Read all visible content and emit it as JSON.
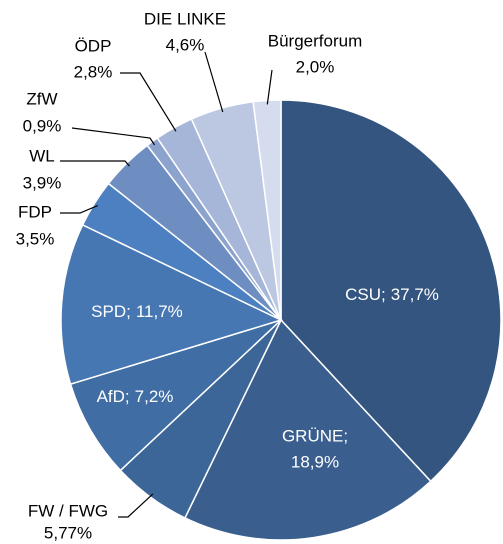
{
  "chart_data": {
    "type": "pie",
    "categories": [
      "CSU;",
      "GRÜNE;",
      "FW / FWG",
      "AfD;",
      "SPD;",
      "FDP",
      "WL",
      "ZfW",
      "ÖDP",
      "DIE LINKE",
      "Bürgerforum"
    ],
    "values": [
      37.7,
      18.9,
      5.77,
      7.2,
      11.7,
      3.5,
      3.9,
      0.9,
      2.8,
      4.6,
      2.0
    ],
    "value_labels": [
      "37,7%",
      "18,9%",
      "5,77%",
      "7,2%",
      "11,7%",
      "3,5%",
      "3,9%",
      "0,9%",
      "2,8%",
      "4,6%",
      "2,0%"
    ],
    "colors": [
      "#34557f",
      "#3a5f8e",
      "#3d6698",
      "#406ea4",
      "#4677b2",
      "#4c80c1",
      "#6e8ec1",
      "#8ca3cd",
      "#a6b6d8",
      "#bcc8e2",
      "#d4dcee"
    ]
  }
}
